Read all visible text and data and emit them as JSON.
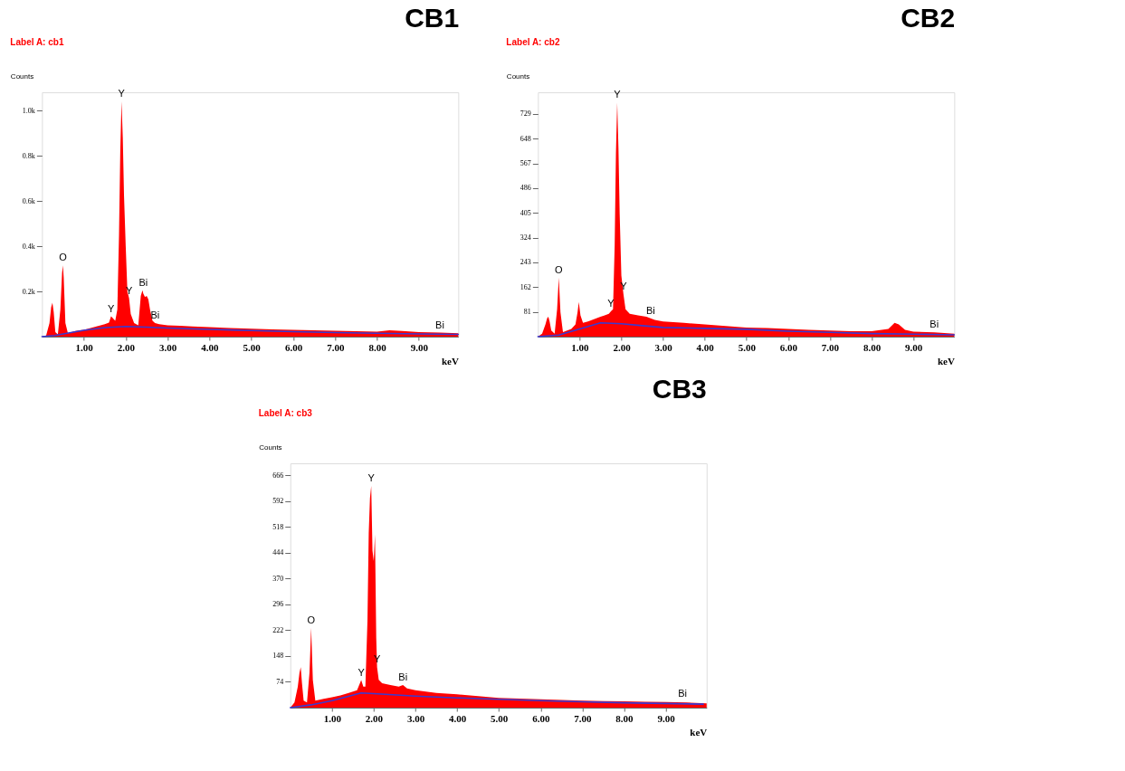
{
  "chart_data": [
    {
      "type": "area",
      "title": "CB1",
      "xlabel": "keV",
      "ylabel": "Counts",
      "xlim": [
        0,
        9.94
      ],
      "ylim": [
        0,
        1080
      ],
      "xticks": [
        {
          "value": 1,
          "label": "1.00"
        },
        {
          "value": 2,
          "label": "2.00"
        },
        {
          "value": 3,
          "label": "3.00"
        },
        {
          "value": 4,
          "label": "4.00"
        },
        {
          "value": 5,
          "label": "5.00"
        },
        {
          "value": 6,
          "label": "6.00"
        },
        {
          "value": 7,
          "label": "7.00"
        },
        {
          "value": 8,
          "label": "8.00"
        },
        {
          "value": 9,
          "label": "9.00"
        }
      ],
      "yticks": [
        {
          "value": 200,
          "label": "0.2k"
        },
        {
          "value": 400,
          "label": "0.4k"
        },
        {
          "value": 600,
          "label": "0.6k"
        },
        {
          "value": 800,
          "label": "0.8k"
        },
        {
          "value": 1000,
          "label": "1.0k"
        }
      ],
      "series": [
        {
          "color": "#ff0000",
          "x": [
            0,
            0.1,
            0.18,
            0.22,
            0.25,
            0.28,
            0.32,
            0.38,
            0.44,
            0.48,
            0.5,
            0.52,
            0.56,
            0.62,
            0.7,
            0.8,
            0.9,
            1.0,
            1.1,
            1.2,
            1.3,
            1.4,
            1.5,
            1.6,
            1.65,
            1.7,
            1.75,
            1.8,
            1.84,
            1.87,
            1.9,
            1.93,
            1.96,
            2.0,
            2.04,
            2.08,
            2.12,
            2.2,
            2.3,
            2.36,
            2.4,
            2.42,
            2.46,
            2.5,
            2.54,
            2.58,
            2.64,
            2.7,
            2.8,
            3.0,
            3.3,
            3.6,
            4.0,
            4.5,
            5.0,
            5.5,
            6.0,
            6.5,
            7.0,
            7.5,
            8.0,
            8.3,
            8.6,
            9.0,
            9.5,
            9.94
          ],
          "values": [
            0,
            5,
            60,
            130,
            150,
            110,
            20,
            10,
            120,
            280,
            315,
            260,
            60,
            15,
            20,
            25,
            28,
            30,
            35,
            40,
            45,
            50,
            55,
            62,
            90,
            80,
            70,
            120,
            450,
            820,
            1040,
            880,
            620,
            400,
            200,
            170,
            100,
            60,
            50,
            180,
            205,
            190,
            175,
            180,
            165,
            120,
            70,
            60,
            55,
            50,
            48,
            45,
            42,
            38,
            35,
            32,
            30,
            28,
            26,
            24,
            22,
            28,
            25,
            20,
            18,
            15
          ]
        },
        {
          "type": "line",
          "color": "#3a3ad0",
          "x": [
            0,
            0.3,
            0.6,
            1.0,
            1.5,
            2.0,
            2.5,
            3.0,
            4.0,
            5.0,
            6.0,
            7.0,
            8.0,
            9.0,
            9.94
          ],
          "values": [
            0,
            5,
            15,
            28,
            40,
            45,
            42,
            38,
            32,
            27,
            22,
            18,
            15,
            12,
            10
          ]
        }
      ],
      "annotations": [
        "Label A: cb1",
        {
          "text": "O",
          "x": 0.5,
          "y": 315
        },
        {
          "text": "Y",
          "x": 1.65,
          "y": 90
        },
        {
          "text": "Y",
          "x": 1.9,
          "y": 1040
        },
        {
          "text": "Y",
          "x": 2.08,
          "y": 170
        },
        {
          "text": "Bi",
          "x": 2.42,
          "y": 205
        },
        {
          "text": "Bi",
          "x": 2.7,
          "y": 60
        },
        {
          "text": "Bi",
          "x": 9.5,
          "y": 18
        }
      ]
    },
    {
      "type": "area",
      "title": "CB2",
      "xlabel": "keV",
      "ylabel": "Counts",
      "xlim": [
        0,
        9.98
      ],
      "ylim": [
        0,
        800
      ],
      "xticks": [
        {
          "value": 1,
          "label": "1.00"
        },
        {
          "value": 2,
          "label": "2.00"
        },
        {
          "value": 3,
          "label": "3.00"
        },
        {
          "value": 4,
          "label": "4.00"
        },
        {
          "value": 5,
          "label": "5.00"
        },
        {
          "value": 6,
          "label": "6.00"
        },
        {
          "value": 7,
          "label": "7.00"
        },
        {
          "value": 8,
          "label": "8.00"
        },
        {
          "value": 9,
          "label": "9.00"
        }
      ],
      "yticks": [
        81,
        162,
        243,
        324,
        405,
        486,
        567,
        648,
        729
      ],
      "series": [
        {
          "color": "#ff0000",
          "x": [
            0,
            0.1,
            0.18,
            0.22,
            0.25,
            0.28,
            0.32,
            0.4,
            0.46,
            0.5,
            0.54,
            0.6,
            0.7,
            0.8,
            0.9,
            0.95,
            0.98,
            1.02,
            1.08,
            1.2,
            1.3,
            1.4,
            1.5,
            1.6,
            1.7,
            1.75,
            1.8,
            1.84,
            1.87,
            1.9,
            1.93,
            1.96,
            2.0,
            2.05,
            2.1,
            2.2,
            2.4,
            2.6,
            2.7,
            2.8,
            3.0,
            3.5,
            4.0,
            4.5,
            5.0,
            5.5,
            6.0,
            6.5,
            7.0,
            7.5,
            8.0,
            8.4,
            8.55,
            8.65,
            8.8,
            9.0,
            9.5,
            9.98
          ],
          "values": [
            0,
            10,
            40,
            60,
            65,
            50,
            20,
            10,
            90,
            193,
            80,
            15,
            20,
            25,
            40,
            80,
            113,
            70,
            45,
            50,
            55,
            60,
            65,
            70,
            75,
            83,
            90,
            300,
            600,
            766,
            620,
            400,
            200,
            139,
            90,
            75,
            70,
            65,
            60,
            55,
            50,
            45,
            40,
            35,
            30,
            28,
            25,
            22,
            20,
            18,
            18,
            25,
            45,
            40,
            22,
            16,
            14,
            10
          ]
        },
        {
          "type": "line",
          "color": "#3a3ad0",
          "x": [
            0,
            0.5,
            1.0,
            1.5,
            2.0,
            2.5,
            3.0,
            4.0,
            5.0,
            6.0,
            7.0,
            8.0,
            9.0,
            9.98
          ],
          "values": [
            0,
            5,
            25,
            45,
            42,
            36,
            30,
            27,
            24,
            18,
            14,
            10,
            8,
            6
          ]
        }
      ],
      "annotations": [
        "Label A: cb2",
        {
          "text": "O",
          "x": 0.5,
          "y": 193
        },
        {
          "text": "Y",
          "x": 1.75,
          "y": 83
        },
        {
          "text": "Y",
          "x": 1.9,
          "y": 766
        },
        {
          "text": "Y",
          "x": 2.05,
          "y": 139
        },
        {
          "text": "Bi",
          "x": 2.7,
          "y": 60
        },
        {
          "text": "Bi",
          "x": 9.5,
          "y": 14
        }
      ]
    },
    {
      "type": "area",
      "title": "CB3",
      "xlabel": "keV",
      "ylabel": "Counts",
      "xlim": [
        0,
        9.98
      ],
      "ylim": [
        0,
        700
      ],
      "xticks": [
        {
          "value": 1,
          "label": "1.00"
        },
        {
          "value": 2,
          "label": "2.00"
        },
        {
          "value": 3,
          "label": "3.00"
        },
        {
          "value": 4,
          "label": "4.00"
        },
        {
          "value": 5,
          "label": "5.00"
        },
        {
          "value": 6,
          "label": "6.00"
        },
        {
          "value": 7,
          "label": "7.00"
        },
        {
          "value": 8,
          "label": "8.00"
        },
        {
          "value": 9,
          "label": "9.00"
        }
      ],
      "yticks": [
        74,
        148,
        222,
        296,
        370,
        444,
        518,
        592,
        666
      ],
      "series": [
        {
          "color": "#ff0000",
          "x": [
            0,
            0.1,
            0.18,
            0.22,
            0.25,
            0.28,
            0.32,
            0.4,
            0.46,
            0.5,
            0.54,
            0.6,
            0.8,
            1.0,
            1.2,
            1.4,
            1.6,
            1.7,
            1.75,
            1.8,
            1.85,
            1.88,
            1.91,
            1.94,
            1.97,
            2.0,
            2.03,
            2.06,
            2.08,
            2.12,
            2.2,
            2.4,
            2.6,
            2.7,
            2.8,
            3.0,
            3.5,
            4.0,
            4.5,
            5.0,
            5.5,
            6.0,
            6.5,
            7.0,
            7.5,
            8.0,
            8.5,
            9.0,
            9.5,
            9.98
          ],
          "values": [
            0,
            15,
            60,
            100,
            116,
            70,
            20,
            15,
            100,
            229,
            80,
            20,
            25,
            30,
            35,
            42,
            50,
            79,
            60,
            60,
            250,
            500,
            600,
            635,
            450,
            420,
            496,
            200,
            116,
            80,
            70,
            65,
            60,
            65,
            55,
            50,
            42,
            38,
            33,
            28,
            26,
            24,
            22,
            20,
            19,
            18,
            17,
            16,
            15,
            12
          ]
        },
        {
          "type": "line",
          "color": "#3a3ad0",
          "x": [
            0,
            0.5,
            1.0,
            1.7,
            2.0,
            3.0,
            4.0,
            5.0,
            6.0,
            7.0,
            8.0,
            9.0,
            9.9
          ],
          "values": [
            0,
            8,
            20,
            42,
            40,
            33,
            28,
            24,
            20,
            17,
            14,
            12,
            10
          ]
        }
      ],
      "annotations": [
        "Label A: cb3",
        {
          "text": "O",
          "x": 0.5,
          "y": 229
        },
        {
          "text": "Y",
          "x": 1.7,
          "y": 79
        },
        {
          "text": "Y",
          "x": 1.94,
          "y": 635
        },
        {
          "text": "Y",
          "x": 2.08,
          "y": 116
        },
        {
          "text": "Bi",
          "x": 2.7,
          "y": 65
        },
        {
          "text": "Bi",
          "x": 9.4,
          "y": 17
        }
      ]
    }
  ]
}
